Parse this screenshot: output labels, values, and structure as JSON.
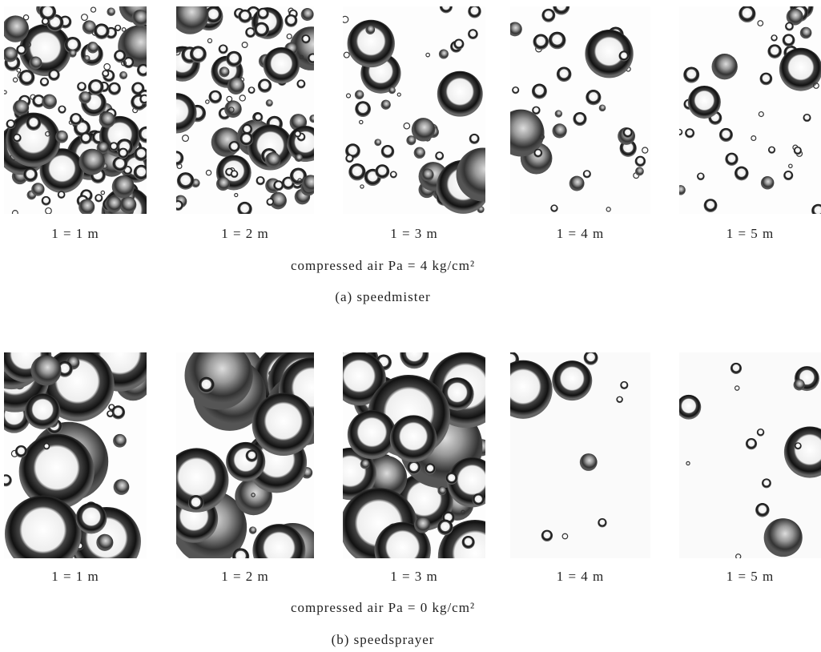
{
  "panels": [
    {
      "images": [
        {
          "label": "1 = 1 m"
        },
        {
          "label": "1 = 2 m"
        },
        {
          "label": "1 = 3 m"
        },
        {
          "label": "1 = 4 m"
        },
        {
          "label": "1 = 5 m"
        }
      ],
      "condition": "compressed air Pa = 4  kg/cm²",
      "caption": "(a)   speedmister"
    },
    {
      "images": [
        {
          "label": "1 = 1 m"
        },
        {
          "label": "1 = 2 m"
        },
        {
          "label": "1 = 3 m"
        },
        {
          "label": "1 = 4 m"
        },
        {
          "label": "1 = 5 m"
        }
      ],
      "condition": "compressed air Pa = 0  kg/cm²",
      "caption": "(b)   speedsprayer"
    }
  ]
}
